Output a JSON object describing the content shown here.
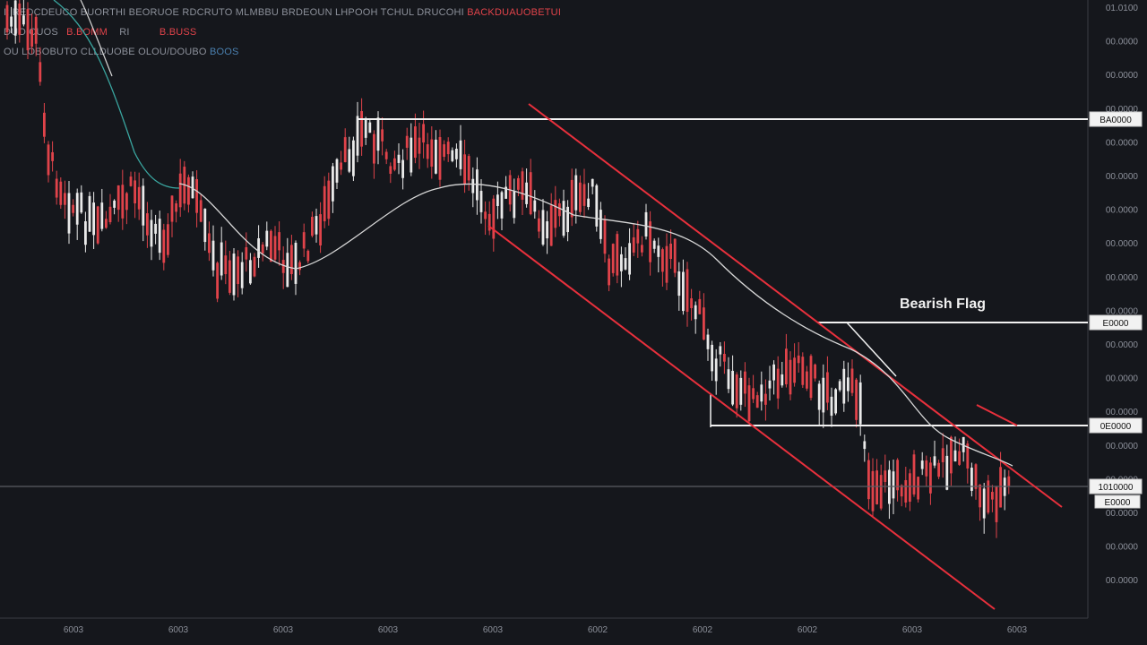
{
  "header": {
    "line1_a": "I: REDCDEUCO BUORTHI BEORUOE RDCRUTO MLMBBU BRDEOUN LHPOOH TCHUL DRUCOHI",
    "line1_b": "BACKDUAUOBETUI",
    "line2_a": "DUO CUOS",
    "line2_b": "B.BOMM",
    "line2_c": "RI",
    "line2_d": "B.BUSS",
    "line3_a": "OU LOBOBUTO CLLDUOBE OLOU/DOUBO",
    "line3_b": "BOOS"
  },
  "colors": {
    "background": "#15171c",
    "bull": "#e9e9e9",
    "bear": "#e0434a",
    "channel": "#e8303c",
    "ma": "#d8d8d8",
    "ma_teal": "#3aa6a0",
    "level": "#f2f2f2",
    "grid_mid": "#5a5d63"
  },
  "chart_data": {
    "type": "candlestick",
    "title": "",
    "annotation": "Bearish Flag",
    "y_ticks": [
      "01.0100",
      "00.0000",
      "00.0000",
      "00.0000",
      "00.0000",
      "00.0000",
      "00.0000",
      "00.0000",
      "00.0000",
      "00.0000",
      "00.0000",
      "00.0000",
      "00.0000",
      "00.0000",
      "00.0000",
      "00.0000",
      "00.0000",
      "00.0000"
    ],
    "x_ticks": [
      "6003",
      "6003",
      "6003",
      "6003",
      "6003",
      "6002",
      "6002",
      "6002",
      "6003",
      "6003"
    ],
    "levels": [
      {
        "label": "BA0000",
        "value": 133
      },
      {
        "label": "E0000",
        "value": 360
      },
      {
        "label": "0E0000",
        "value": 475
      }
    ],
    "current": {
      "label": "1010000",
      "label2": "E0000",
      "value": 543
    },
    "ylim": [
      0,
      720
    ]
  }
}
